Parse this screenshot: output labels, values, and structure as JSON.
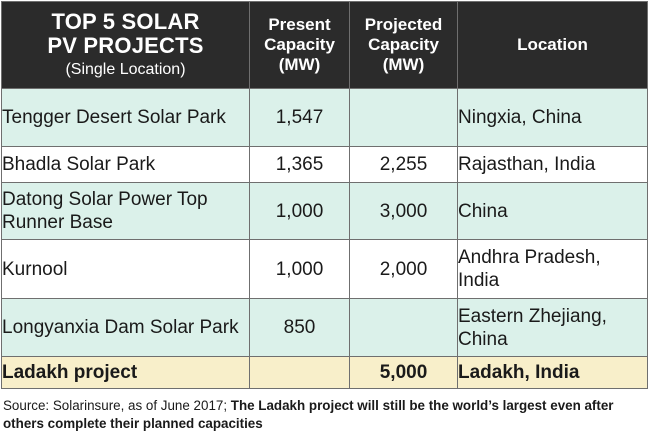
{
  "header": {
    "title_line1": "TOP 5 SOLAR",
    "title_line2": "PV PROJECTS",
    "title_sub": "(Single Location)",
    "col_present": "Present Capacity (MW)",
    "col_projected": "Projected Capacity (MW)",
    "col_location": "Location"
  },
  "rows": [
    {
      "name": "Tengger Desert Solar Park",
      "present": "1,547",
      "projected": "",
      "location": "Ningxia, China"
    },
    {
      "name": "Bhadla Solar Park",
      "present": "1,365",
      "projected": "2,255",
      "location": "Rajasthan, India"
    },
    {
      "name": "Datong Solar Power Top Runner Base",
      "present": "1,000",
      "projected": "3,000",
      "location": "China"
    },
    {
      "name": "Kurnool",
      "present": "1,000",
      "projected": "2,000",
      "location": "Andhra Pradesh, India"
    },
    {
      "name": "Longyanxia Dam Solar Park",
      "present": "850",
      "projected": "",
      "location": "Eastern Zhejiang, China"
    }
  ],
  "total": {
    "name": "Ladakh project",
    "present": "",
    "projected": "5,000",
    "location": "Ladakh, India"
  },
  "footer": {
    "source": "Source: Solarinsure, as of June 2017; ",
    "note": "The Ladakh project will still be the world’s largest even after others complete their planned capacities"
  },
  "colors": {
    "title_bg": "#e4242b",
    "header_bg": "#2b2b2b",
    "row_shade": "#dbf1ea",
    "total_bg": "#f8efca"
  }
}
